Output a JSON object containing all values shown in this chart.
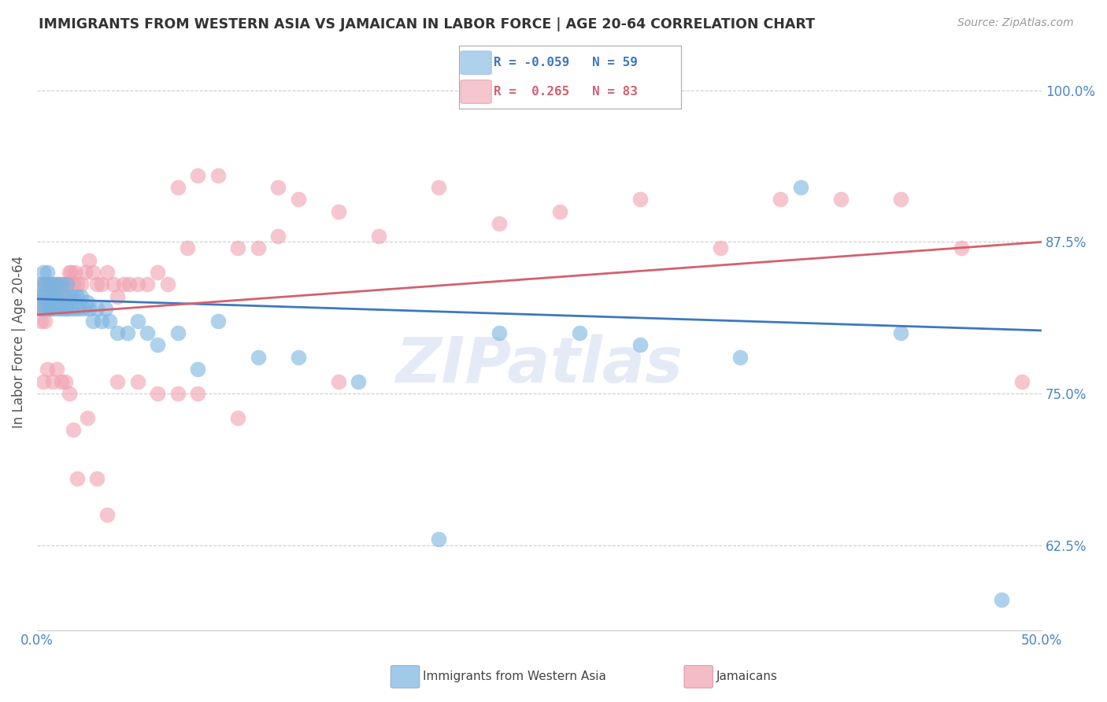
{
  "title": "IMMIGRANTS FROM WESTERN ASIA VS JAMAICAN IN LABOR FORCE | AGE 20-64 CORRELATION CHART",
  "source": "Source: ZipAtlas.com",
  "ylabel": "In Labor Force | Age 20-64",
  "xlim": [
    0.0,
    0.5
  ],
  "ylim": [
    0.555,
    1.03
  ],
  "ytick_positions": [
    0.625,
    0.75,
    0.875,
    1.0
  ],
  "ytick_labels": [
    "62.5%",
    "75.0%",
    "87.5%",
    "100.0%"
  ],
  "watermark": "ZIPatlas",
  "blue_color": "#7ab4e0",
  "pink_color": "#f0a0b0",
  "blue_line_color": "#3d78c0",
  "pink_line_color": "#d46070",
  "blue_scatter_x": [
    0.001,
    0.002,
    0.002,
    0.003,
    0.003,
    0.004,
    0.004,
    0.005,
    0.005,
    0.006,
    0.006,
    0.007,
    0.007,
    0.008,
    0.008,
    0.009,
    0.01,
    0.01,
    0.011,
    0.012,
    0.012,
    0.013,
    0.014,
    0.015,
    0.015,
    0.016,
    0.017,
    0.018,
    0.019,
    0.02,
    0.021,
    0.022,
    0.023,
    0.025,
    0.026,
    0.028,
    0.03,
    0.032,
    0.034,
    0.036,
    0.04,
    0.045,
    0.05,
    0.055,
    0.06,
    0.07,
    0.08,
    0.09,
    0.11,
    0.13,
    0.16,
    0.2,
    0.23,
    0.27,
    0.3,
    0.35,
    0.38,
    0.43,
    0.48
  ],
  "blue_scatter_y": [
    0.83,
    0.82,
    0.84,
    0.85,
    0.83,
    0.82,
    0.84,
    0.83,
    0.85,
    0.82,
    0.84,
    0.83,
    0.82,
    0.84,
    0.83,
    0.82,
    0.84,
    0.83,
    0.82,
    0.84,
    0.82,
    0.83,
    0.82,
    0.84,
    0.82,
    0.83,
    0.82,
    0.83,
    0.82,
    0.83,
    0.82,
    0.83,
    0.82,
    0.825,
    0.82,
    0.81,
    0.82,
    0.81,
    0.82,
    0.81,
    0.8,
    0.8,
    0.81,
    0.8,
    0.79,
    0.8,
    0.77,
    0.81,
    0.78,
    0.78,
    0.76,
    0.63,
    0.8,
    0.8,
    0.79,
    0.78,
    0.92,
    0.8,
    0.58
  ],
  "pink_scatter_x": [
    0.001,
    0.002,
    0.002,
    0.003,
    0.003,
    0.004,
    0.005,
    0.005,
    0.006,
    0.007,
    0.007,
    0.008,
    0.009,
    0.01,
    0.01,
    0.011,
    0.012,
    0.013,
    0.014,
    0.015,
    0.016,
    0.017,
    0.018,
    0.019,
    0.02,
    0.022,
    0.024,
    0.026,
    0.028,
    0.03,
    0.032,
    0.035,
    0.038,
    0.04,
    0.043,
    0.046,
    0.05,
    0.055,
    0.06,
    0.065,
    0.07,
    0.075,
    0.08,
    0.09,
    0.1,
    0.11,
    0.12,
    0.13,
    0.15,
    0.17,
    0.2,
    0.23,
    0.26,
    0.3,
    0.34,
    0.37,
    0.4,
    0.43,
    0.46,
    0.49,
    0.002,
    0.003,
    0.004,
    0.005,
    0.006,
    0.008,
    0.01,
    0.012,
    0.014,
    0.016,
    0.018,
    0.02,
    0.025,
    0.03,
    0.035,
    0.04,
    0.05,
    0.06,
    0.07,
    0.08,
    0.1,
    0.12,
    0.15
  ],
  "pink_scatter_y": [
    0.82,
    0.83,
    0.84,
    0.83,
    0.82,
    0.84,
    0.83,
    0.82,
    0.84,
    0.83,
    0.84,
    0.83,
    0.83,
    0.84,
    0.83,
    0.84,
    0.83,
    0.84,
    0.83,
    0.84,
    0.85,
    0.85,
    0.84,
    0.85,
    0.84,
    0.84,
    0.85,
    0.86,
    0.85,
    0.84,
    0.84,
    0.85,
    0.84,
    0.83,
    0.84,
    0.84,
    0.84,
    0.84,
    0.85,
    0.84,
    0.92,
    0.87,
    0.93,
    0.93,
    0.87,
    0.87,
    0.92,
    0.91,
    0.9,
    0.88,
    0.92,
    0.89,
    0.9,
    0.91,
    0.87,
    0.91,
    0.91,
    0.91,
    0.87,
    0.76,
    0.81,
    0.76,
    0.81,
    0.77,
    0.82,
    0.76,
    0.77,
    0.76,
    0.76,
    0.75,
    0.72,
    0.68,
    0.73,
    0.68,
    0.65,
    0.76,
    0.76,
    0.75,
    0.75,
    0.75,
    0.73,
    0.88,
    0.76
  ]
}
